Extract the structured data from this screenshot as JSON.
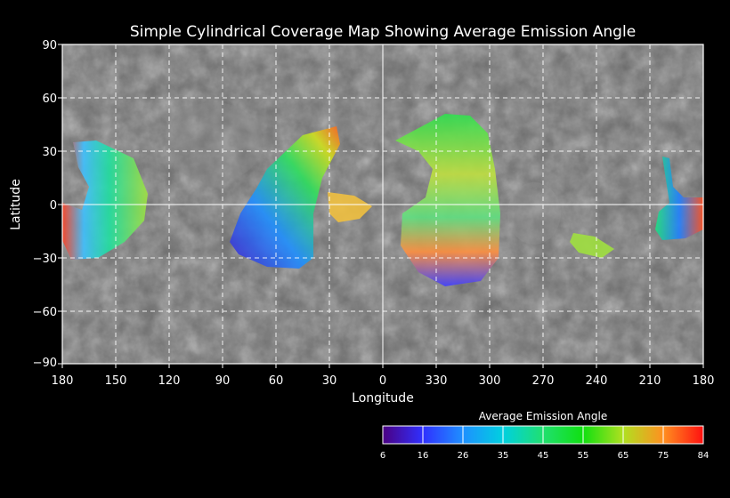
{
  "title": "Simple Cylindrical Coverage Map Showing Average Emission Angle",
  "xlabel": "Longitude",
  "ylabel": "Latitude",
  "x_ticks": [
    "180",
    "150",
    "120",
    "90",
    "60",
    "30",
    "0",
    "330",
    "300",
    "270",
    "240",
    "210",
    "180"
  ],
  "y_ticks": [
    "90",
    "60",
    "30",
    "0",
    "−30",
    "−60",
    "−90"
  ],
  "colorbar": {
    "title": "Average Emission Angle",
    "ticks": [
      "6",
      "16",
      "26",
      "35",
      "45",
      "55",
      "65",
      "75",
      "84"
    ],
    "colors": [
      "#4b0082",
      "#3030ff",
      "#1e90ff",
      "#00d0e0",
      "#20e070",
      "#10e010",
      "#b0e020",
      "#ff9020",
      "#ff1010"
    ]
  },
  "map": {
    "projection": "simple cylindrical",
    "background": "grayscale basemap",
    "gridlines": "dashed white every 30 degrees"
  }
}
